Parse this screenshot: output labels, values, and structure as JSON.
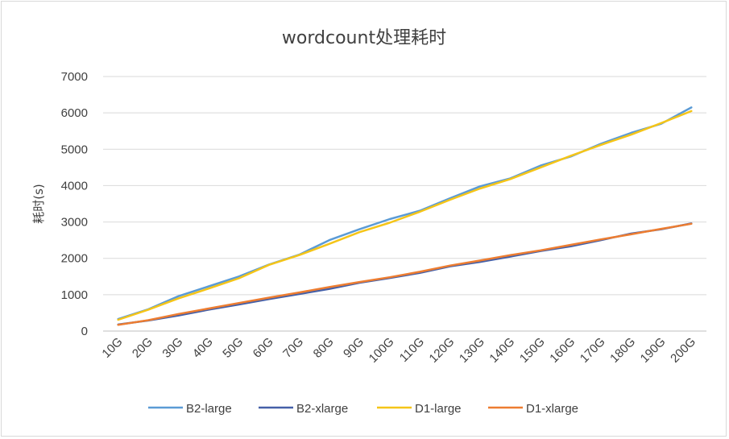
{
  "chart_data": {
    "type": "line",
    "title": "wordcount处理耗时",
    "ylabel": "耗时(s)",
    "xlabel": "",
    "ylim": [
      0,
      7000
    ],
    "yticks": [
      0,
      1000,
      2000,
      3000,
      4000,
      5000,
      6000,
      7000
    ],
    "grid": true,
    "legend_position": "bottom",
    "categories": [
      "10G",
      "20G",
      "30G",
      "40G",
      "50G",
      "60G",
      "70G",
      "80G",
      "90G",
      "100G",
      "110G",
      "120G",
      "130G",
      "140G",
      "150G",
      "160G",
      "170G",
      "180G",
      "190G",
      "200G"
    ],
    "series": [
      {
        "name": "B2-large",
        "color": "#5b9bd5",
        "values": [
          330,
          600,
          960,
          1230,
          1500,
          1830,
          2100,
          2500,
          2800,
          3080,
          3310,
          3650,
          3980,
          4200,
          4550,
          4800,
          5150,
          5450,
          5700,
          6150
        ]
      },
      {
        "name": "B2-xlarge",
        "color": "#4560a8",
        "values": [
          180,
          290,
          430,
          590,
          730,
          880,
          1020,
          1160,
          1330,
          1460,
          1600,
          1780,
          1900,
          2050,
          2200,
          2330,
          2500,
          2680,
          2800,
          2960
        ]
      },
      {
        "name": "D1-large",
        "color": "#f5c518",
        "values": [
          310,
          590,
          900,
          1170,
          1450,
          1820,
          2090,
          2400,
          2720,
          2980,
          3280,
          3610,
          3920,
          4180,
          4500,
          4820,
          5120,
          5400,
          5720,
          6050
        ]
      },
      {
        "name": "D1-xlarge",
        "color": "#ed7d31",
        "values": [
          170,
          300,
          470,
          620,
          770,
          920,
          1060,
          1210,
          1350,
          1480,
          1630,
          1800,
          1940,
          2090,
          2220,
          2370,
          2520,
          2660,
          2810,
          2950
        ]
      }
    ]
  }
}
